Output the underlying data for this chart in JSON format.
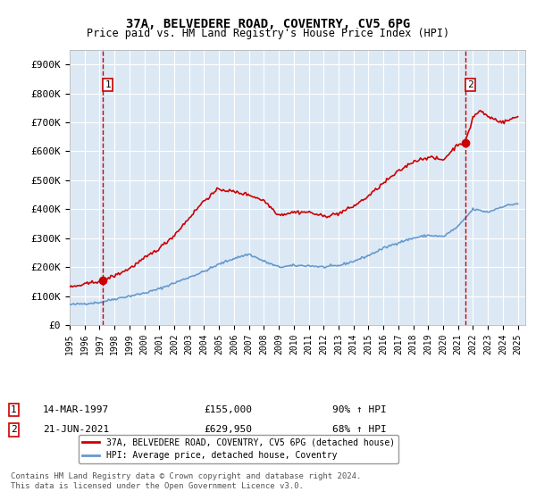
{
  "title1": "37A, BELVEDERE ROAD, COVENTRY, CV5 6PG",
  "title2": "Price paid vs. HM Land Registry's House Price Index (HPI)",
  "ylabel_ticks": [
    "£0",
    "£100K",
    "£200K",
    "£300K",
    "£400K",
    "£500K",
    "£600K",
    "£700K",
    "£800K",
    "£900K"
  ],
  "ytick_values": [
    0,
    100000,
    200000,
    300000,
    400000,
    500000,
    600000,
    700000,
    800000,
    900000
  ],
  "ylim": [
    0,
    950000
  ],
  "xlim_start": 1995.0,
  "xlim_end": 2025.5,
  "bg_color": "#dce9f5",
  "plot_bg": "#dce9f5",
  "grid_color": "#ffffff",
  "red_line_color": "#cc0000",
  "blue_line_color": "#6699cc",
  "marker_color": "#cc0000",
  "dashed_color": "#cc0000",
  "box_color": "#cc0000",
  "sale1_x": 1997.2,
  "sale1_y": 155000,
  "sale1_label": "1",
  "sale1_date": "14-MAR-1997",
  "sale1_price": "£155,000",
  "sale1_hpi": "90% ↑ HPI",
  "sale2_x": 2021.47,
  "sale2_y": 629950,
  "sale2_label": "2",
  "sale2_date": "21-JUN-2021",
  "sale2_price": "£629,950",
  "sale2_hpi": "68% ↑ HPI",
  "legend_label1": "37A, BELVEDERE ROAD, COVENTRY, CV5 6PG (detached house)",
  "legend_label2": "HPI: Average price, detached house, Coventry",
  "footer": "Contains HM Land Registry data © Crown copyright and database right 2024.\nThis data is licensed under the Open Government Licence v3.0.",
  "xtick_years": [
    1995,
    1996,
    1997,
    1998,
    1999,
    2000,
    2001,
    2002,
    2003,
    2004,
    2005,
    2006,
    2007,
    2008,
    2009,
    2010,
    2011,
    2012,
    2013,
    2014,
    2015,
    2016,
    2017,
    2018,
    2019,
    2020,
    2021,
    2022,
    2023,
    2024,
    2025
  ]
}
